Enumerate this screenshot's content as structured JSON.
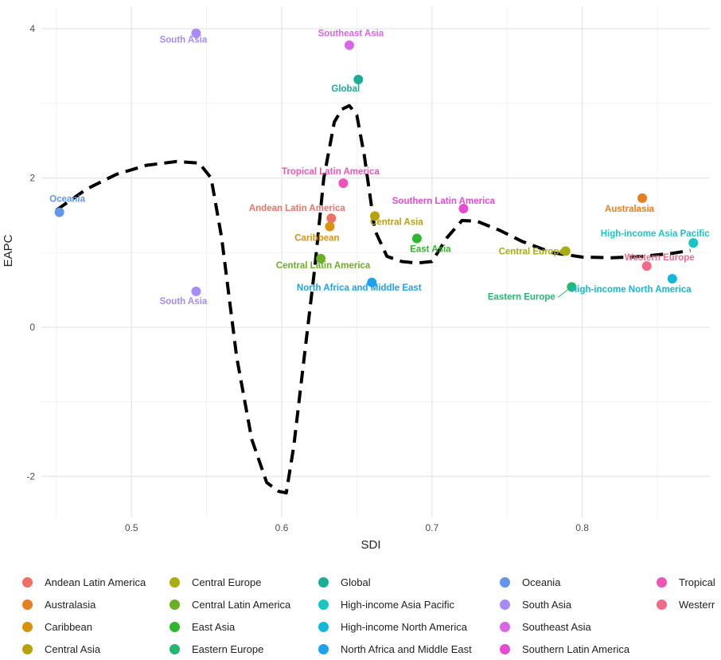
{
  "chart_data": {
    "type": "scatter",
    "xlabel": "SDI",
    "ylabel": "EAPC",
    "xlim": [
      0.44,
      0.885
    ],
    "ylim": [
      -2.55,
      4.3
    ],
    "xticks": [
      0.5,
      0.6,
      0.7,
      0.8
    ],
    "xtick_labels": [
      "0.5",
      "0.6",
      "0.7",
      "0.8"
    ],
    "yticks": [
      -2,
      0,
      2,
      4
    ],
    "ytick_labels": [
      "-2",
      "0",
      "2",
      "4"
    ],
    "grid": true,
    "legend_position": "bottom",
    "points": [
      {
        "label": "Oceania",
        "x": 0.452,
        "y": 1.54,
        "color": "#6495ed"
      },
      {
        "label": "South Asia",
        "x": 0.543,
        "y": 3.94,
        "color": "#a78bfa"
      },
      {
        "label": "South Asia",
        "x": 0.543,
        "y": 0.48,
        "color": "#a78bfa"
      },
      {
        "label": "Southeast Asia",
        "x": 0.645,
        "y": 3.78,
        "color": "#d966e8"
      },
      {
        "label": "Global",
        "x": 0.651,
        "y": 3.32,
        "color": "#1aae96"
      },
      {
        "label": "Tropical Latin America",
        "x": 0.641,
        "y": 1.93,
        "color": "#f052b8"
      },
      {
        "label": "Andean Latin America",
        "x": 0.633,
        "y": 1.46,
        "color": "#f07065"
      },
      {
        "label": "Caribbean",
        "x": 0.632,
        "y": 1.35,
        "color": "#d9920b"
      },
      {
        "label": "Central Asia",
        "x": 0.662,
        "y": 1.49,
        "color": "#b8a10a"
      },
      {
        "label": "East Asia",
        "x": 0.69,
        "y": 1.19,
        "color": "#2db82d"
      },
      {
        "label": "Central Latin America",
        "x": 0.626,
        "y": 0.92,
        "color": "#6ab023"
      },
      {
        "label": "North Africa and Middle East",
        "x": 0.66,
        "y": 0.6,
        "color": "#1da1f2"
      },
      {
        "label": "Southern Latin America",
        "x": 0.721,
        "y": 1.59,
        "color": "#e64bd2"
      },
      {
        "label": "Australasia",
        "x": 0.84,
        "y": 1.73,
        "color": "#e67e22"
      },
      {
        "label": "Central Europe",
        "x": 0.789,
        "y": 1.02,
        "color": "#a9ad12"
      },
      {
        "label": "High-income Asia Pacific",
        "x": 0.874,
        "y": 1.13,
        "color": "#19c4c4"
      },
      {
        "label": "Western Europe",
        "x": 0.843,
        "y": 0.82,
        "color": "#f06b8a"
      },
      {
        "label": "Eastern Europe",
        "x": 0.793,
        "y": 0.54,
        "color": "#23b86e"
      },
      {
        "label": "High-income North America",
        "x": 0.86,
        "y": 0.65,
        "color": "#12b8d9"
      }
    ],
    "trend_line": {
      "style": "dashed",
      "color": "#000000",
      "x": [
        0.45,
        0.47,
        0.49,
        0.51,
        0.53,
        0.545,
        0.553,
        0.56,
        0.57,
        0.58,
        0.59,
        0.598,
        0.603,
        0.608,
        0.615,
        0.622,
        0.628,
        0.635,
        0.64,
        0.645,
        0.65,
        0.655,
        0.662,
        0.67,
        0.68,
        0.69,
        0.7,
        0.71,
        0.72,
        0.73,
        0.745,
        0.76,
        0.78,
        0.8,
        0.82,
        0.84,
        0.86,
        0.872
      ],
      "y": [
        1.57,
        1.85,
        2.05,
        2.17,
        2.22,
        2.2,
        2.0,
        1.2,
        -0.4,
        -1.5,
        -2.08,
        -2.2,
        -2.22,
        -1.6,
        -0.4,
        0.8,
        2.0,
        2.75,
        2.92,
        2.97,
        2.84,
        2.3,
        1.3,
        0.95,
        0.88,
        0.86,
        0.88,
        1.2,
        1.43,
        1.42,
        1.3,
        1.15,
        1.0,
        0.94,
        0.93,
        0.95,
        0.99,
        1.03
      ]
    }
  },
  "legend": {
    "items": [
      {
        "label": "Andean Latin America",
        "color": "#f07065"
      },
      {
        "label": "Australasia",
        "color": "#e67e22"
      },
      {
        "label": "Caribbean",
        "color": "#d9920b"
      },
      {
        "label": "Central Asia",
        "color": "#b8a10a"
      },
      {
        "label": "Central Europe",
        "color": "#a9ad12"
      },
      {
        "label": "Central Latin America",
        "color": "#6ab023"
      },
      {
        "label": "East Asia",
        "color": "#2db82d"
      },
      {
        "label": "Eastern Europe",
        "color": "#23b86e"
      },
      {
        "label": "Global",
        "color": "#1aae96"
      },
      {
        "label": "High-income Asia Pacific",
        "color": "#19c4c4"
      },
      {
        "label": "High-income North America",
        "color": "#12b8d9"
      },
      {
        "label": "North Africa and Middle East",
        "color": "#1da1f2"
      },
      {
        "label": "Oceania",
        "color": "#6495ed"
      },
      {
        "label": "South Asia",
        "color": "#a78bfa"
      },
      {
        "label": "Southeast Asia",
        "color": "#d966e8"
      },
      {
        "label": "Southern Latin America",
        "color": "#e64bd2"
      },
      {
        "label": "Tropical",
        "color": "#f052b8"
      },
      {
        "label": "Westerr",
        "color": "#f06b8a"
      }
    ]
  }
}
